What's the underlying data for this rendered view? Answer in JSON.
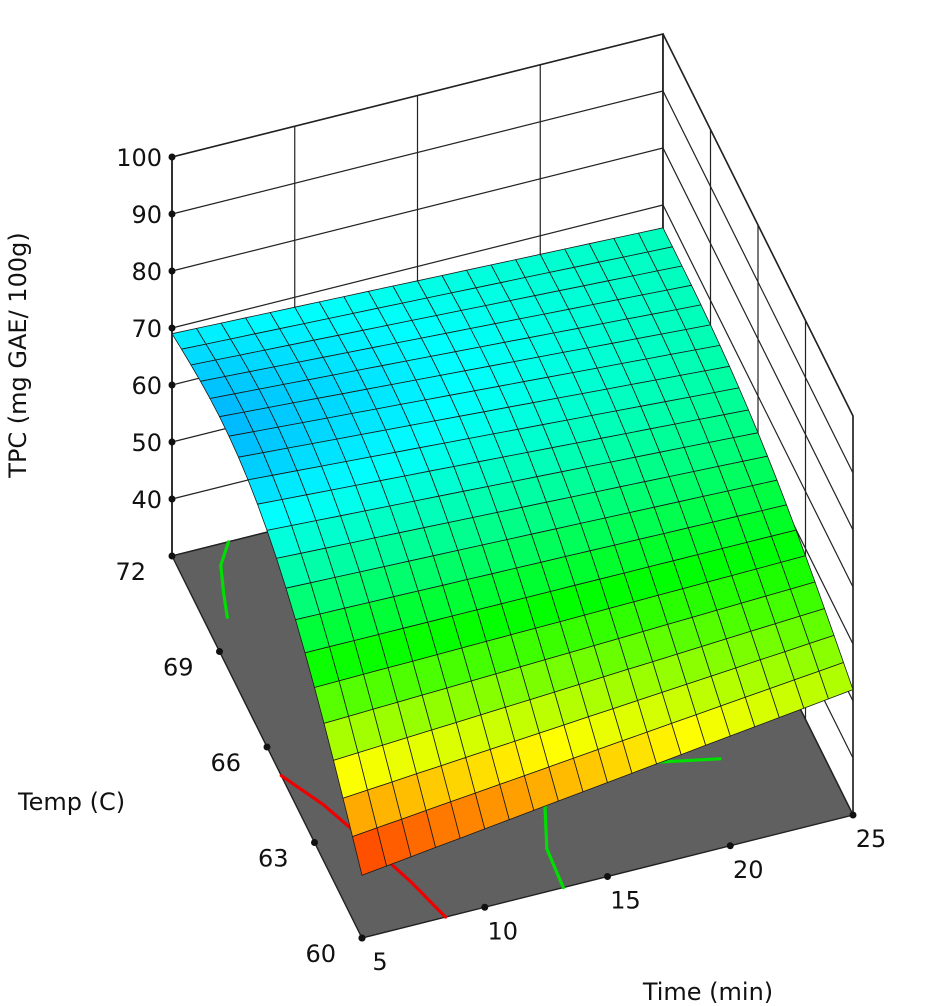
{
  "chart_data": {
    "type": "surface",
    "zlabel": "TPC (mg GAE/ 100g)",
    "xlabel": "Time (min)",
    "ylabel": "Temp (C)",
    "x_ticks": [
      "5",
      "10",
      "15",
      "20",
      "25"
    ],
    "y_ticks": [
      "60",
      "63",
      "66",
      "69",
      "72"
    ],
    "z_ticks": [
      "40",
      "50",
      "60",
      "70",
      "80",
      "90",
      "100"
    ],
    "xlim": [
      5,
      25
    ],
    "ylim": [
      60,
      72
    ],
    "zlim": [
      30,
      100
    ],
    "surface_corners": [
      {
        "time": 5,
        "temp": 72,
        "tpc": 69
      },
      {
        "time": 25,
        "temp": 72,
        "tpc": 66
      },
      {
        "time": 25,
        "temp": 60,
        "tpc": 52
      },
      {
        "time": 5,
        "temp": 60,
        "tpc": 41
      }
    ],
    "colormap": [
      "#0000ff",
      "#00ffff",
      "#00ff00",
      "#ffff00",
      "#ff0000"
    ],
    "floor_color": "#606060",
    "contour_colors": {
      "green": "#00dd00",
      "red": "#ee0000"
    },
    "grid": true
  }
}
